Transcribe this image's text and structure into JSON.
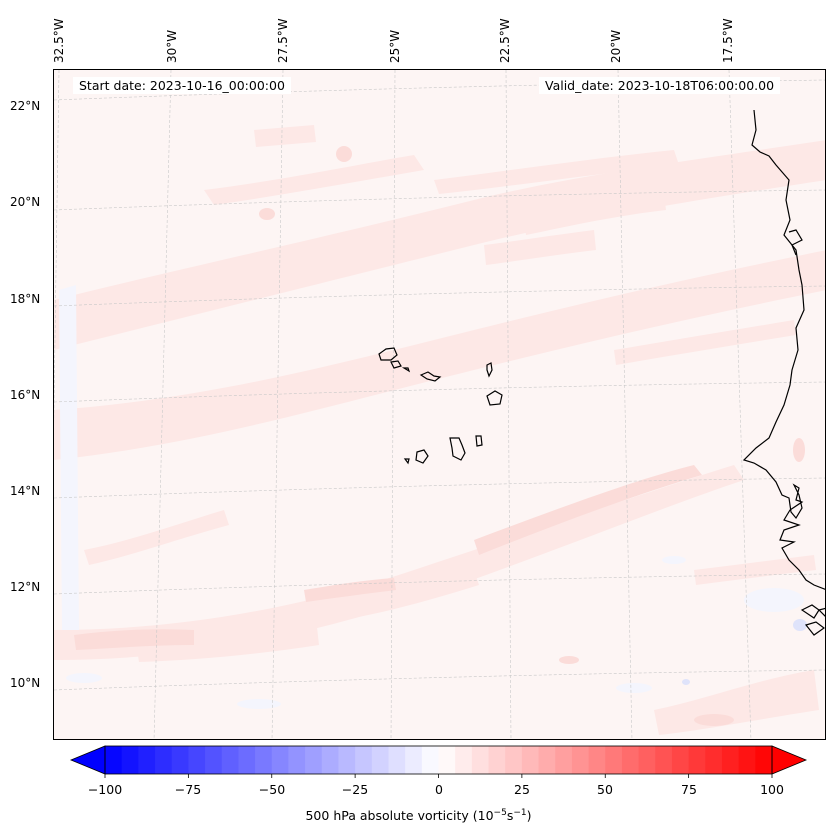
{
  "map": {
    "start_date": "Start date: 2023-10-16_00:00:00",
    "valid_date": "Valid_date: 2023-10-18T06:00:00.00",
    "lon_labels": [
      "32.5°W",
      "30°W",
      "27.5°W",
      "25°W",
      "22.5°W",
      "20°W",
      "17.5°W"
    ],
    "lat_labels": [
      "22°N",
      "20°N",
      "18°N",
      "16°N",
      "14°N",
      "12°N",
      "10°N"
    ],
    "lon_values": [
      -32.5,
      -30,
      -27.5,
      -25,
      -22.5,
      -20,
      -17.5
    ],
    "lat_values": [
      22,
      20,
      18,
      16,
      14,
      12,
      10
    ],
    "extent": {
      "lon_min": -32.7,
      "lon_max": -16.3,
      "lat_min": 8.9,
      "lat_max": 22.8
    },
    "gridlines": true,
    "gridline_style": "dashed",
    "coastline_color": "#000000",
    "features": [
      "Cabo Verde islands",
      "West African coastline (Mauritania, Senegal, Guinea-Bissau)"
    ]
  },
  "colorbar": {
    "title": "500 hPa absolute vorticity (10",
    "title_unit_exp1": "−5",
    "title_mid": "s",
    "title_unit_exp2": "−1",
    "title_end": ")",
    "tick_labels": [
      "−100",
      "−75",
      "−50",
      "−25",
      "0",
      "25",
      "50",
      "75",
      "100"
    ],
    "tick_values": [
      -100,
      -75,
      -50,
      -25,
      0,
      25,
      50,
      75,
      100
    ],
    "vmin": -100,
    "vmax": 100,
    "step": 5,
    "colormap": "bwr",
    "extend": "both"
  },
  "colors": {
    "field_background": "#fdf5f4",
    "positive_weak": "#fde8e6",
    "positive_mid": "#fbdcd9",
    "negative_weak": "#f4f5fd"
  }
}
